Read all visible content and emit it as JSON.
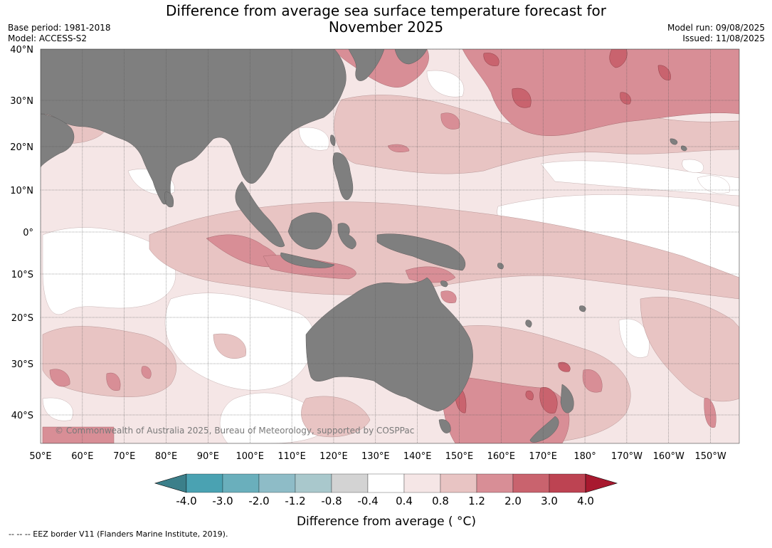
{
  "title_line1": "Difference from average sea surface temperature forecast for",
  "title_line2": "November 2025",
  "base_period": "Base period: 1981-2018",
  "model": "Model: ACCESS-S2",
  "model_run": "Model run: 09/08/2025",
  "issued": "Issued: 11/08/2025",
  "copyright": "© Commonwealth of Australia 2025, Bureau of Meteorology, supported by COSPPac",
  "eez_note": "--  --  -- EEZ border V11 (Flanders Marine Institute, 2019).",
  "lat_labels": [
    "40°N",
    "30°N",
    "20°N",
    "10°N",
    "0°",
    "10°S",
    "20°S",
    "30°S",
    "40°S"
  ],
  "lat_values": [
    40,
    30,
    20,
    10,
    0,
    -10,
    -20,
    -30,
    -40
  ],
  "lon_labels": [
    "50°E",
    "60°E",
    "70°E",
    "80°E",
    "90°E",
    "100°E",
    "110°E",
    "120°E",
    "130°E",
    "140°E",
    "150°E",
    "160°E",
    "170°E",
    "180°",
    "170°W",
    "160°W",
    "150°W"
  ],
  "lon_values": [
    50,
    60,
    70,
    80,
    90,
    100,
    110,
    120,
    130,
    140,
    150,
    160,
    170,
    180,
    190,
    200,
    210
  ],
  "colorbar": {
    "label": "Difference from average ( °C)",
    "ticks": [
      "-4.0",
      "-3.0",
      "-2.0",
      "-1.2",
      "-0.8",
      "-0.4",
      "0.4",
      "0.8",
      "1.2",
      "2.0",
      "3.0",
      "4.0"
    ],
    "colors": [
      "#3b7f8a",
      "#4aa2b2",
      "#6aafbc",
      "#8ebcc7",
      "#a9c8cc",
      "#d3d3d3",
      "#ffffff",
      "#f5e6e6",
      "#e8c4c3",
      "#d88e96",
      "#c9636e",
      "#bd4352",
      "#a8192f"
    ]
  },
  "legend_colors": {
    "land": "#7f7f7f",
    "warm1": "#f5e6e6",
    "warm2": "#e8c4c3",
    "warm3": "#d88e96",
    "warm4": "#c9636e"
  }
}
